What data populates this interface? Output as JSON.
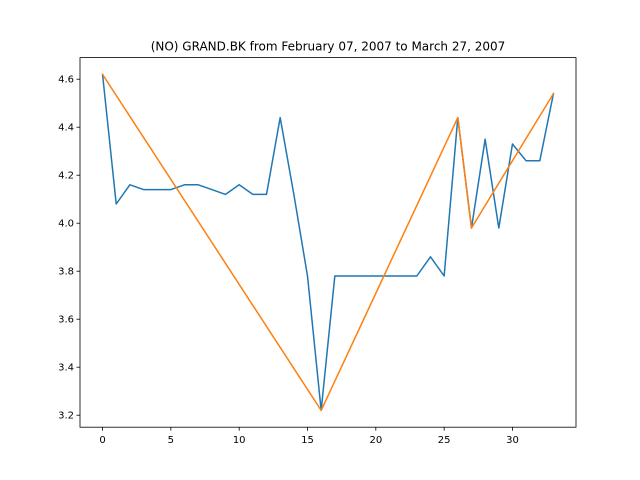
{
  "chart_data": {
    "type": "line",
    "title": "(NO) GRAND.BK from February 07, 2007 to March 27, 2007",
    "xlabel": "",
    "ylabel": "",
    "xlim": [
      -1.65,
      34.65
    ],
    "ylim": [
      3.15,
      4.69
    ],
    "xticks": [
      0,
      5,
      10,
      15,
      20,
      25,
      30
    ],
    "yticks": [
      3.2,
      3.4,
      3.6,
      3.8,
      4.0,
      4.2,
      4.4,
      4.6
    ],
    "grid": false,
    "series": [
      {
        "color": "#1f77b4",
        "x": [
          0,
          1,
          2,
          3,
          4,
          5,
          6,
          7,
          8,
          9,
          10,
          11,
          12,
          13,
          14,
          15,
          16,
          17,
          18,
          19,
          20,
          21,
          22,
          23,
          24,
          25,
          26,
          27,
          28,
          29,
          30,
          31,
          32,
          33
        ],
        "y": [
          4.62,
          4.08,
          4.16,
          4.14,
          4.14,
          4.14,
          4.16,
          4.16,
          4.14,
          4.12,
          4.16,
          4.12,
          4.12,
          4.44,
          4.12,
          3.78,
          3.22,
          3.78,
          3.78,
          3.78,
          3.78,
          3.78,
          3.78,
          3.78,
          3.86,
          3.78,
          4.44,
          3.98,
          4.35,
          3.98,
          4.33,
          4.26,
          4.26,
          4.54
        ]
      },
      {
        "color": "#ff7f0e",
        "x": [
          0,
          16,
          26,
          27,
          33
        ],
        "y": [
          4.62,
          3.22,
          4.44,
          3.98,
          4.54
        ]
      }
    ]
  }
}
